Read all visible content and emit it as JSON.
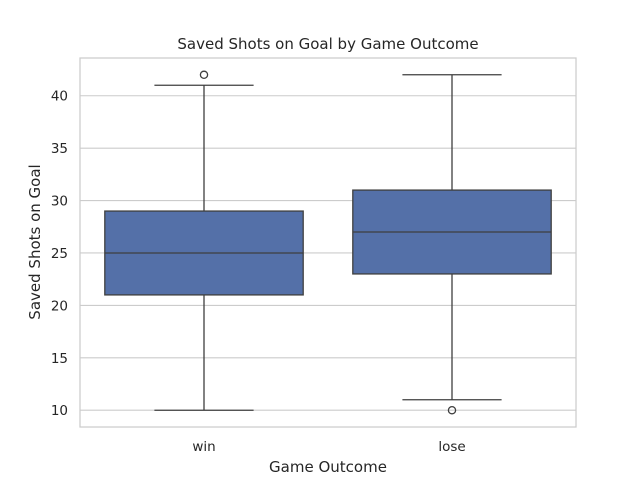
{
  "chart_data": {
    "type": "box",
    "title": "Saved Shots on Goal by Game Outcome",
    "xlabel": "Game Outcome",
    "ylabel": "Saved Shots on Goal",
    "ylim": [
      8.4,
      43.6
    ],
    "yticks": [
      10,
      15,
      20,
      25,
      30,
      35,
      40
    ],
    "grid": "horizontal",
    "box_color": "#5470a8",
    "categories": [
      "win",
      "lose"
    ],
    "boxes": [
      {
        "category": "win",
        "whisker_low": 10,
        "q1": 21,
        "median": 25,
        "q3": 29,
        "whisker_high": 41,
        "outliers": [
          42
        ]
      },
      {
        "category": "lose",
        "whisker_low": 11,
        "q1": 23,
        "median": 27,
        "q3": 31,
        "whisker_high": 42,
        "outliers": [
          10
        ]
      }
    ]
  }
}
